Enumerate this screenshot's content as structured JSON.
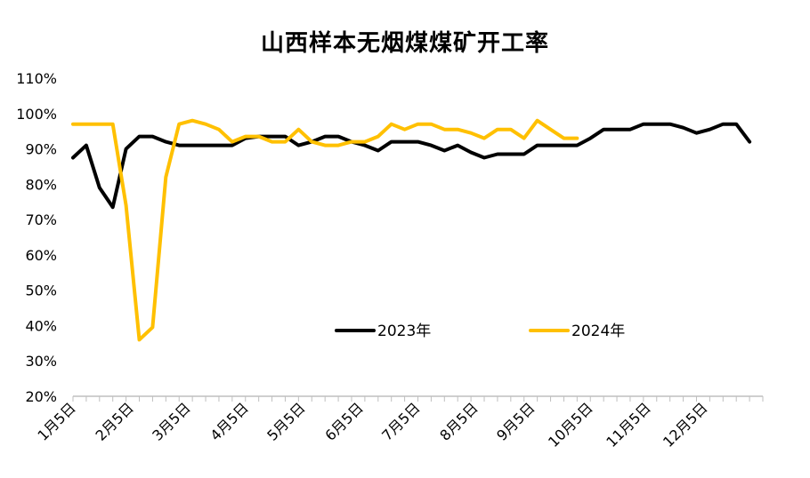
{
  "chart_data": {
    "type": "line",
    "title": "山西样本无烟煤煤矿开工率",
    "ylim": [
      20,
      110
    ],
    "yticks": [
      "20%",
      "30%",
      "40%",
      "50%",
      "60%",
      "70%",
      "80%",
      "90%",
      "100%",
      "110%"
    ],
    "yvalues": [
      20,
      30,
      40,
      50,
      60,
      70,
      80,
      90,
      100,
      110
    ],
    "xticks": [
      "1月5日",
      "2月5日",
      "3月5日",
      "4月5日",
      "5月5日",
      "6月5日",
      "7月5日",
      "8月5日",
      "9月5日",
      "10月5日",
      "11月5日",
      "12月5日"
    ],
    "week_count": 53,
    "legend_position": "center",
    "grid": false,
    "series": [
      {
        "name": "2023年",
        "color": "#000000",
        "values": [
          87.5,
          91,
          79,
          73.5,
          90,
          93.5,
          93.5,
          92,
          91,
          91,
          91,
          91,
          91,
          93,
          93.5,
          93.5,
          93.5,
          91,
          92,
          93.5,
          93.5,
          92,
          91,
          89.5,
          92,
          92,
          92,
          91,
          89.5,
          91,
          89,
          87.5,
          88.5,
          88.5,
          88.5,
          91,
          91,
          91,
          91,
          93,
          95.5,
          95.5,
          95.5,
          97,
          97,
          97,
          96,
          94.5,
          95.5,
          97,
          97,
          92
        ]
      },
      {
        "name": "2024年",
        "color": "#FFC000",
        "values": [
          97,
          97,
          97,
          97,
          74,
          36,
          39.5,
          82,
          97,
          98,
          97,
          95.5,
          92,
          93.5,
          93.5,
          92,
          92,
          95.5,
          92,
          91,
          91,
          92,
          92,
          93.5,
          97,
          95.5,
          97,
          97,
          95.5,
          95.5,
          94.5,
          93,
          95.5,
          95.5,
          93,
          98,
          95.5,
          93,
          93
        ]
      }
    ]
  }
}
